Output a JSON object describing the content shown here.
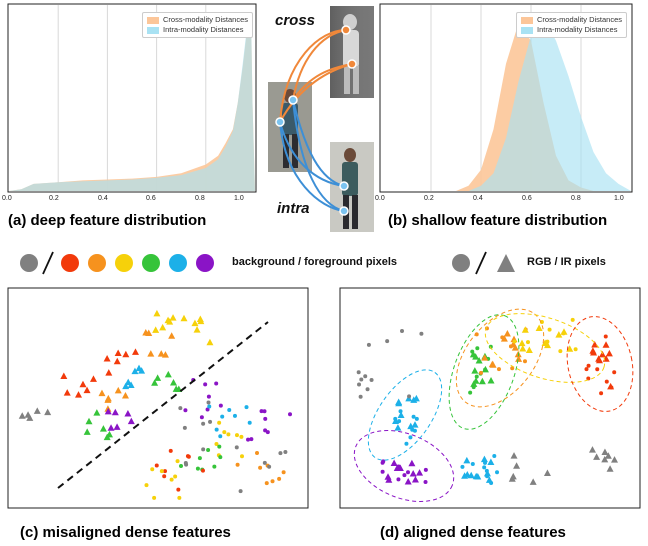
{
  "colors": {
    "cross": "#fcc699",
    "intra": "#a9e2f3",
    "overlap": "#a2c3b0",
    "background": "#808080",
    "classes": [
      "#f23a0b",
      "#f6921e",
      "#f6d10a",
      "#36c43a",
      "#1cb0e8",
      "#8a14c6"
    ]
  },
  "labels": {
    "cross": "cross",
    "intra": "intra",
    "bg_fg": "background / foreground pixels",
    "rgb_ir": "RGB / IR pixels"
  },
  "captions": {
    "a": "(a)  deep feature distribution",
    "b": "(b)  shallow feature distribution",
    "c": "(c)  misaligned dense features",
    "d": "(d)  aligned dense features"
  },
  "chart_data": [
    {
      "type": "area",
      "panel": "a",
      "x_ticks": [
        "0.0",
        "0.2",
        "0.4",
        "0.6",
        "0.8",
        "1.0"
      ],
      "xlim": [
        0,
        1
      ],
      "legend": [
        "Cross-modality Distances",
        "Intra-modality Distances"
      ],
      "legend_position": "top-right",
      "grid": true,
      "series": [
        {
          "name": "Cross-modality Distances",
          "x": [
            0.0,
            0.05,
            0.1,
            0.2,
            0.3,
            0.4,
            0.5,
            0.6,
            0.7,
            0.8,
            0.85,
            0.88,
            0.91,
            0.93,
            0.95,
            0.965,
            0.975,
            0.985,
            0.99,
            1.0
          ],
          "values": [
            0,
            0.01,
            0.04,
            0.05,
            0.06,
            0.065,
            0.07,
            0.08,
            0.1,
            0.15,
            0.2,
            0.27,
            0.35,
            0.5,
            0.7,
            0.88,
            0.98,
            0.9,
            0.5,
            0
          ]
        },
        {
          "name": "Intra-modality Distances",
          "x": [
            0.0,
            0.05,
            0.1,
            0.2,
            0.3,
            0.4,
            0.5,
            0.6,
            0.7,
            0.8,
            0.85,
            0.88,
            0.91,
            0.93,
            0.95,
            0.965,
            0.975,
            0.985,
            0.99,
            1.0
          ],
          "values": [
            0,
            0.01,
            0.04,
            0.05,
            0.055,
            0.06,
            0.065,
            0.075,
            0.09,
            0.13,
            0.18,
            0.25,
            0.34,
            0.5,
            0.72,
            0.9,
            1.0,
            0.92,
            0.5,
            0
          ]
        }
      ]
    },
    {
      "type": "area",
      "panel": "b",
      "x_ticks": [
        "0.0",
        "0.2",
        "0.4",
        "0.6",
        "0.8",
        "1.0"
      ],
      "xlim": [
        0,
        1
      ],
      "legend": [
        "Cross-modality Distances",
        "Intra-modality Distances"
      ],
      "legend_position": "top-right",
      "grid": true,
      "series": [
        {
          "name": "Cross-modality Distances",
          "x": [
            0.3,
            0.35,
            0.4,
            0.45,
            0.5,
            0.55,
            0.6,
            0.65,
            0.7,
            0.75,
            0.8,
            0.85
          ],
          "values": [
            0,
            0.03,
            0.12,
            0.35,
            0.72,
            0.95,
            0.85,
            0.5,
            0.2,
            0.06,
            0.02,
            0
          ]
        },
        {
          "name": "Intra-modality Distances",
          "x": [
            0.35,
            0.4,
            0.45,
            0.5,
            0.55,
            0.6,
            0.65,
            0.7,
            0.75,
            0.8,
            0.85,
            0.9,
            0.95,
            1.0
          ],
          "values": [
            0,
            0.03,
            0.1,
            0.3,
            0.62,
            0.88,
            0.98,
            0.85,
            0.65,
            0.42,
            0.22,
            0.1,
            0.04,
            0
          ]
        }
      ]
    }
  ]
}
